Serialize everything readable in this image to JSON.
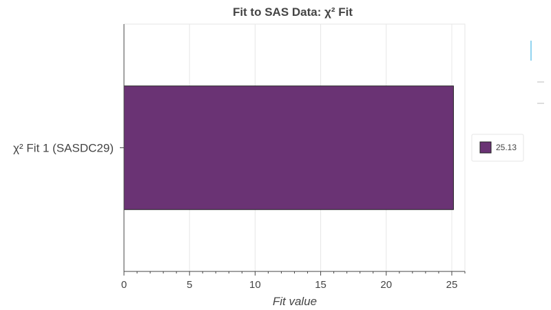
{
  "chart_data": {
    "type": "bar",
    "orientation": "horizontal",
    "title": "Fit to SAS Data: χ² Fit",
    "xlabel": "Fit value",
    "ylabel": "",
    "categories": [
      "χ² Fit 1 (SASDC29)"
    ],
    "series": [
      {
        "name": "25.13",
        "values": [
          25.13
        ],
        "color": "#6a3374"
      }
    ],
    "xlim": [
      0,
      26
    ],
    "xticks": [
      0,
      5,
      10,
      15,
      20,
      25
    ],
    "xtick_labels": [
      "0",
      "5",
      "10",
      "15",
      "20",
      "25"
    ],
    "grid": "vertical",
    "legend_position": "right"
  },
  "colors": {
    "bar_fill": "#6a3374",
    "bar_stroke": "#222222",
    "grid": "#e6e6e6",
    "axis": "#444444",
    "toolbar_active": "#26aae1",
    "toolbar_inactive": "#bbbbbb"
  },
  "toolbar": {
    "icons": [
      "pan-tool-icon",
      "box-zoom-tool-icon",
      "reset-tool-icon"
    ]
  }
}
